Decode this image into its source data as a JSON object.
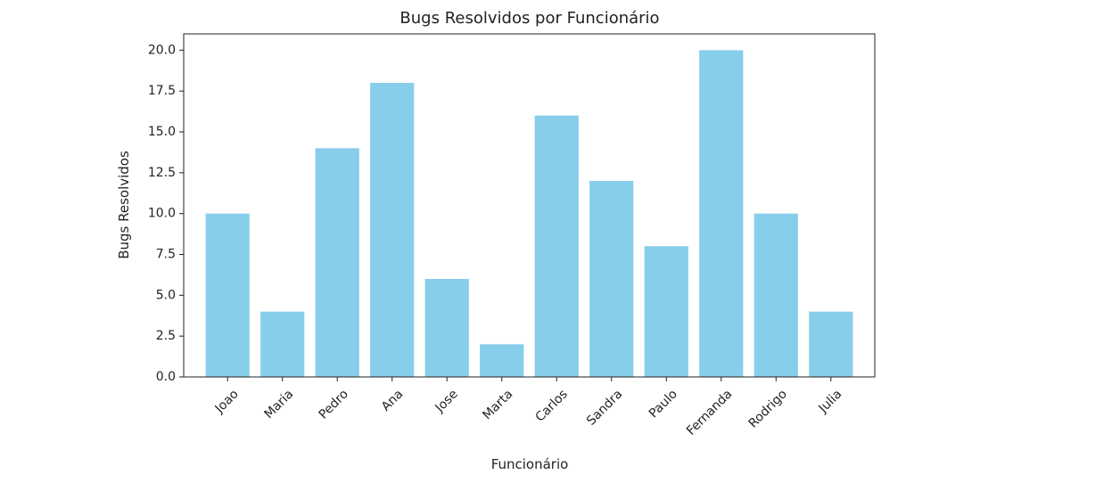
{
  "chart_data": {
    "type": "bar",
    "title": "Bugs Resolvidos por Funcionário",
    "xlabel": "Funcionário",
    "ylabel": "Bugs Resolvidos",
    "categories": [
      "Joao",
      "Maria",
      "Pedro",
      "Ana",
      "Jose",
      "Marta",
      "Carlos",
      "Sandra",
      "Paulo",
      "Fernanda",
      "Rodrigo",
      "Julia"
    ],
    "values": [
      10,
      4,
      14,
      18,
      6,
      2,
      16,
      12,
      8,
      20,
      10,
      4
    ],
    "ylim": [
      0,
      21
    ],
    "yticks": [
      "0.0",
      "2.5",
      "5.0",
      "7.5",
      "10.0",
      "12.5",
      "15.0",
      "17.5",
      "20.0"
    ],
    "bar_color": "#87ceeb",
    "grid": false,
    "legend": "none"
  }
}
